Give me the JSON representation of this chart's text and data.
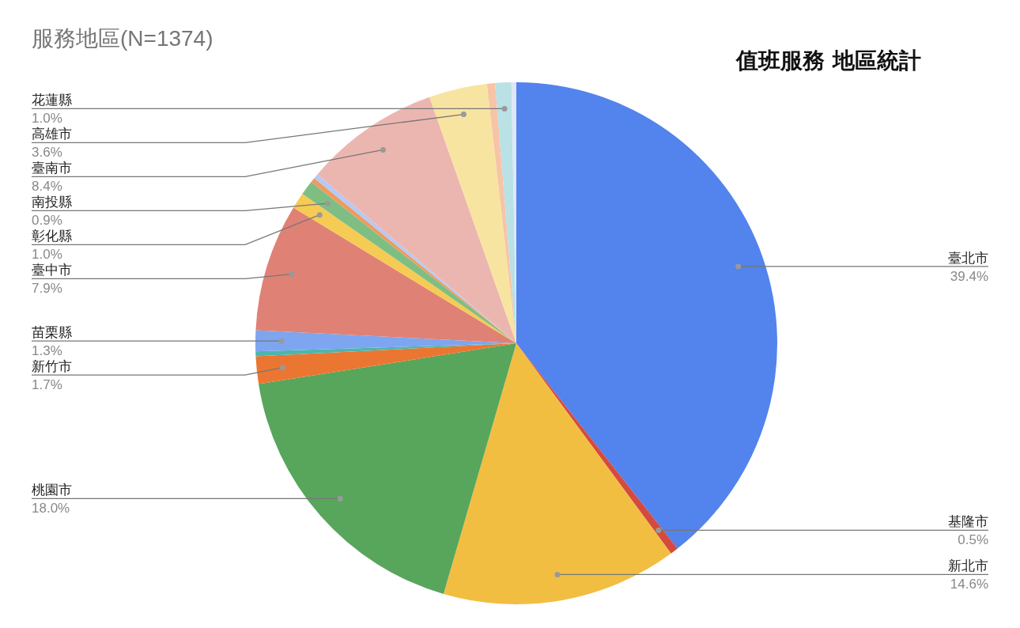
{
  "chart_data": {
    "type": "pie",
    "title": "服務地區(N=1374)",
    "subtitle": "值班服務 地區統計",
    "categories": [
      "臺北市",
      "基隆市",
      "新北市",
      "桃園市",
      "新竹市",
      null,
      "苗栗縣",
      "臺中市",
      "彰化縣",
      "南投縣",
      null,
      null,
      "臺南市",
      "高雄市",
      null,
      "花蓮縣",
      null
    ],
    "values": [
      39.4,
      0.5,
      14.6,
      18.0,
      1.7,
      0.3,
      1.3,
      7.9,
      1.0,
      0.9,
      0.3,
      0.3,
      8.4,
      3.6,
      0.5,
      1.0,
      0.3
    ],
    "value_labels": [
      "39.4%",
      "0.5%",
      "14.6%",
      "18.0%",
      "1.7%",
      null,
      "1.3%",
      "7.9%",
      "1.0%",
      "0.9%",
      null,
      null,
      "8.4%",
      "3.6%",
      null,
      "1.0%",
      null
    ],
    "colors": [
      "#5383ec",
      "#d54a3e",
      "#f1be42",
      "#58a55c",
      "#eb7631",
      "#4db6ac",
      "#7ea5f0",
      "#e08175",
      "#f6cb54",
      "#7fbe83",
      "#ef9a5e",
      "#b6c9f3",
      "#ecb6b0",
      "#f8e4a1",
      "#f7c4a6",
      "#b9e1e6",
      "#dde7f8"
    ]
  }
}
